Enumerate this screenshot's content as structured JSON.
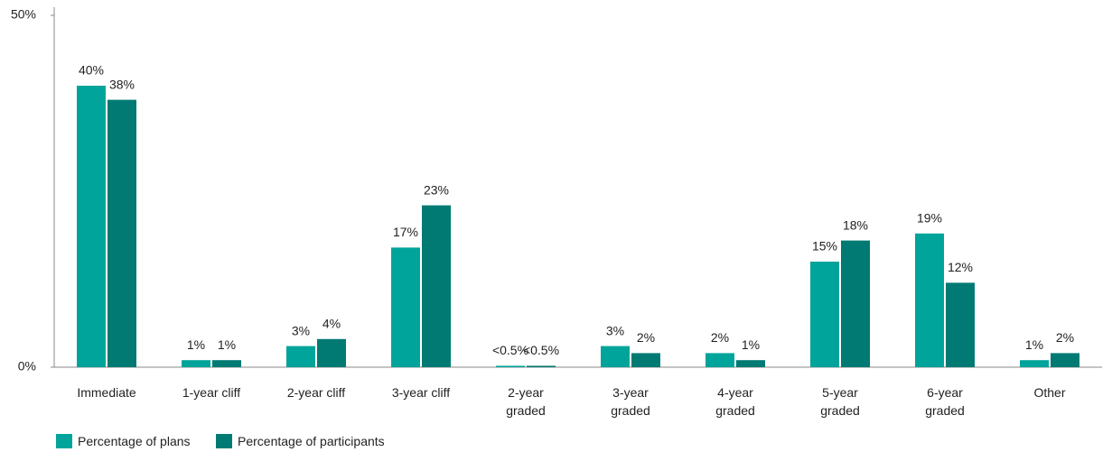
{
  "chart_data": {
    "type": "bar",
    "categories": [
      "Immediate",
      "1-year cliff",
      "2-year cliff",
      "3-year cliff",
      "2-year graded",
      "3-year graded",
      "4-year graded",
      "5-year graded",
      "6-year graded",
      "Other"
    ],
    "series": [
      {
        "name": "Percentage of plans",
        "color": "#00a49a",
        "values": [
          40,
          1,
          3,
          17,
          0.2,
          3,
          2,
          15,
          19,
          1
        ],
        "value_labels": [
          "40%",
          "1%",
          "3%",
          "17%",
          "<0.5%",
          "3%",
          "2%",
          "15%",
          "19%",
          "1%"
        ]
      },
      {
        "name": "Percentage of participants",
        "color": "#007a73",
        "values": [
          38,
          1,
          4,
          23,
          0.2,
          2,
          1,
          18,
          12,
          2
        ],
        "value_labels": [
          "38%",
          "1%",
          "4%",
          "23%",
          "<0.5%",
          "2%",
          "1%",
          "18%",
          "12%",
          "2%"
        ]
      }
    ],
    "ylim": [
      0,
      50
    ],
    "yticks": [
      {
        "value": 0,
        "label": "0%"
      },
      {
        "value": 50,
        "label": "50%"
      }
    ],
    "grid": false,
    "legend": "bottom-left"
  }
}
